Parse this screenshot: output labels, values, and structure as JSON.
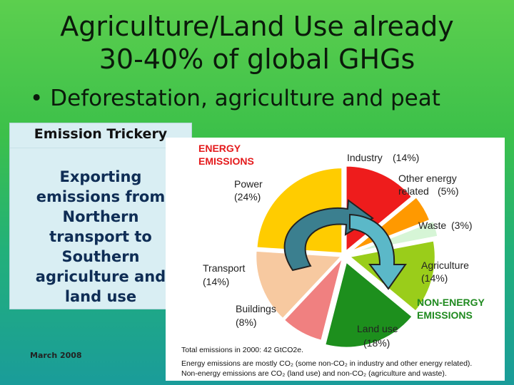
{
  "slide": {
    "title_line1": "Agriculture/Land Use already",
    "title_line2": "30-40% of global GHGs",
    "bullet": "Deforestation, agriculture and peat",
    "date": "March 2008"
  },
  "sidebox": {
    "heading": "Emission Trickery",
    "lines": [
      "Exporting",
      "emissions from",
      "Northern",
      "transport to",
      "Southern",
      "agriculture and",
      "land use"
    ]
  },
  "figure": {
    "energy_heading": [
      "ENERGY",
      "EMISSIONS"
    ],
    "nonenergy_heading": [
      "NON-ENERGY",
      "EMISSIONS"
    ],
    "colors": {
      "energy_heading": "#e41a1c",
      "nonenergy_heading": "#1f8a1f",
      "industry": "#ee1c1c",
      "other_energy": "#ff9900",
      "waste": "#d6f5d6",
      "agriculture": "#9acd1a",
      "land_use": "#1d8f1d",
      "buildings": "#f08080",
      "transport": "#f7c9a0",
      "power": "#ffcc00",
      "arrow_left": "#3b7f8f",
      "arrow_right": "#5bb8c8"
    },
    "sectors": [
      {
        "name": "Industry",
        "pct": "(14%)",
        "value": 14
      },
      {
        "name": "Other energy",
        "name2": "related",
        "pct": "(5%)",
        "value": 5
      },
      {
        "name": "Waste",
        "pct": "(3%)",
        "value": 3
      },
      {
        "name": "Agriculture",
        "pct": "(14%)",
        "value": 14
      },
      {
        "name": "Land use",
        "pct": "(18%)",
        "value": 18
      },
      {
        "name": "Buildings",
        "pct": "(8%)",
        "value": 8
      },
      {
        "name": "Transport",
        "pct": "(14%)",
        "value": 14
      },
      {
        "name": "Power",
        "pct": "(24%)",
        "value": 24
      }
    ],
    "notes": [
      "Total emissions in 2000: 42 GtCO2e.",
      "Energy emissions are mostly CO₂ (some non-CO₂ in industry and other energy related).",
      "Non-energy emissions are CO₂ (land use) and non-CO₂ (agriculture and waste)."
    ]
  }
}
